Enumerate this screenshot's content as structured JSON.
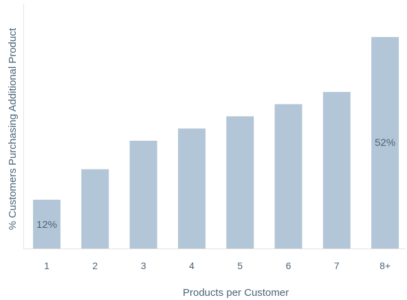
{
  "chart_data": {
    "type": "bar",
    "title": "",
    "xlabel": "Products per Customer",
    "ylabel": "% Customers Purchasing Additional Product",
    "categories": [
      "1",
      "2",
      "3",
      "4",
      "5",
      "6",
      "7",
      "8+"
    ],
    "values": [
      12,
      19.5,
      26.5,
      29.5,
      32.5,
      35.5,
      38.5,
      52
    ],
    "data_labels": [
      "12%",
      "",
      "",
      "",
      "",
      "",
      "",
      "52%"
    ],
    "ylim": [
      0,
      60
    ],
    "grid": false,
    "legend": "none",
    "bar_color": "#b3c6d7",
    "text_color": "#4a6578",
    "axis_color": "#e2e2e2"
  }
}
